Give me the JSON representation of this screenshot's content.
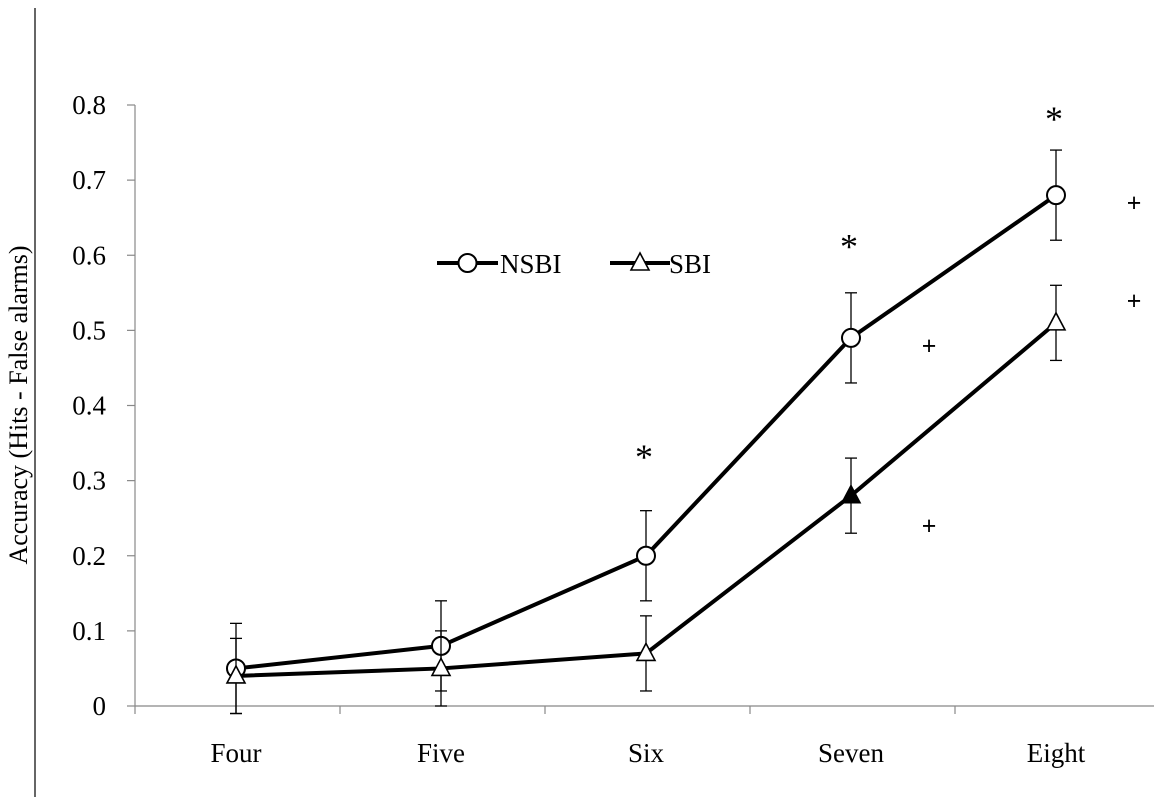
{
  "chart_data": {
    "type": "line",
    "title": "",
    "xlabel": "",
    "ylabel": "Accuracy (Hits - False alarms)",
    "categories": [
      "Four",
      "Five",
      "Six",
      "Seven",
      "Eight"
    ],
    "ylim": [
      0,
      0.8
    ],
    "yticks": [
      "0",
      "0.1",
      "0.2",
      "0.3",
      "0.4",
      "0.5",
      "0.6",
      "0.7",
      "0.8"
    ],
    "grid": false,
    "legend_position": "center",
    "series": [
      {
        "name": "NSBI",
        "marker": "open-circle",
        "values": [
          0.05,
          0.08,
          0.2,
          0.49,
          0.68
        ],
        "error": [
          0.06,
          0.06,
          0.06,
          0.06,
          0.06
        ]
      },
      {
        "name": "SBI",
        "marker": "open-triangle",
        "values": [
          0.04,
          0.05,
          0.07,
          0.28,
          0.51
        ],
        "error": [
          0.05,
          0.05,
          0.05,
          0.05,
          0.05
        ],
        "filled_marker_categories": [
          "Seven"
        ]
      }
    ],
    "annotations": [
      {
        "text": "*",
        "category": "Six",
        "y": 0.35
      },
      {
        "text": "*",
        "category": "Seven",
        "y": 0.63
      },
      {
        "text": "*",
        "category": "Eight",
        "y": 0.8
      },
      {
        "text": "+",
        "category": "Seven",
        "offset": "right",
        "y": 0.48
      },
      {
        "text": "+",
        "category": "Seven",
        "offset": "right",
        "y": 0.24
      },
      {
        "text": "+",
        "category": "Eight",
        "offset": "right",
        "y": 0.67
      },
      {
        "text": "+",
        "category": "Eight",
        "offset": "right",
        "y": 0.54
      }
    ]
  }
}
